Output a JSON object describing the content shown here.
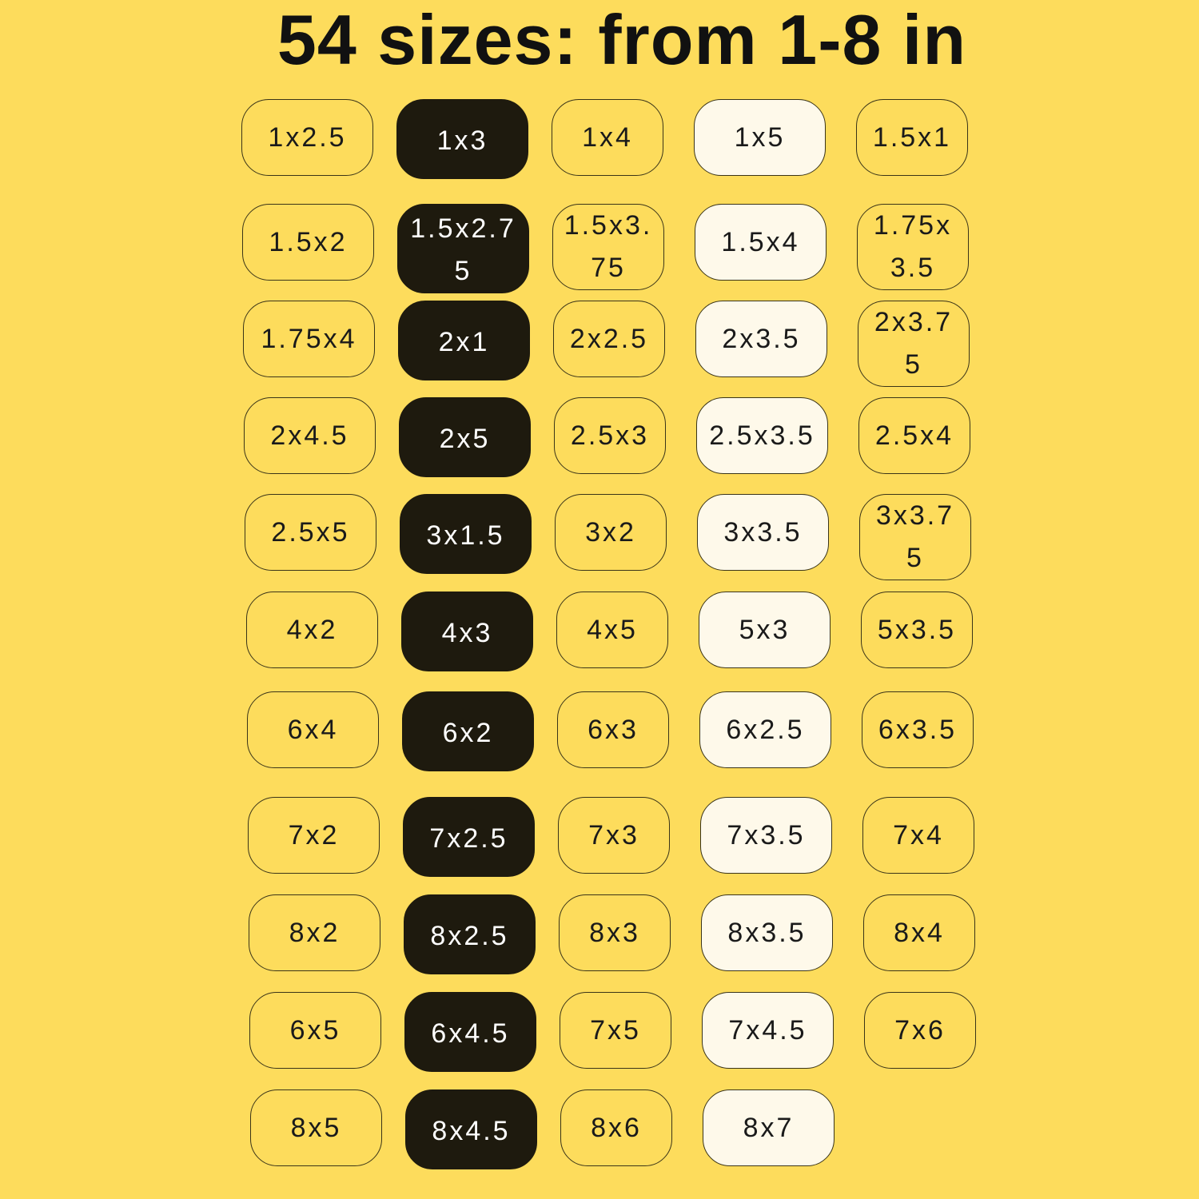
{
  "title": "54 sizes: from 1-8 in",
  "colors": {
    "background": "#FDDC5C",
    "dark": "#1E1A0E",
    "light": "#FEF9EA"
  },
  "column_styles": [
    "outline",
    "dark",
    "outline",
    "light",
    "outline"
  ],
  "rows": [
    [
      "1x2.5",
      "1x3",
      "1x4",
      "1x5",
      "1.5x1"
    ],
    [
      "1.5x2",
      "1.5x2.75",
      "1.5x3.75",
      "1.5x4",
      "1.75x3.5"
    ],
    [
      "1.75x4",
      "2x1",
      "2x2.5",
      "2x3.5",
      "2x3.75"
    ],
    [
      "2x4.5",
      "2x5",
      "2.5x3",
      "2.5x3.5",
      "2.5x4"
    ],
    [
      "2.5x5",
      "3x1.5",
      "3x2",
      "3x3.5",
      "3x3.75"
    ],
    [
      "4x2",
      "4x3",
      "4x5",
      "5x3",
      "5x3.5"
    ],
    [
      "6x4",
      "6x2",
      "6x3",
      "6x2.5",
      "6x3.5"
    ],
    [
      "7x2",
      "7x2.5",
      "7x3",
      "7x3.5",
      "7x4"
    ],
    [
      "8x2",
      "8x2.5",
      "8x3",
      "8x3.5",
      "8x4"
    ],
    [
      "6x5",
      "6x4.5",
      "7x5",
      "7x4.5",
      "7x6"
    ],
    [
      "8x5",
      "8x4.5",
      "8x6",
      "8x7"
    ]
  ]
}
